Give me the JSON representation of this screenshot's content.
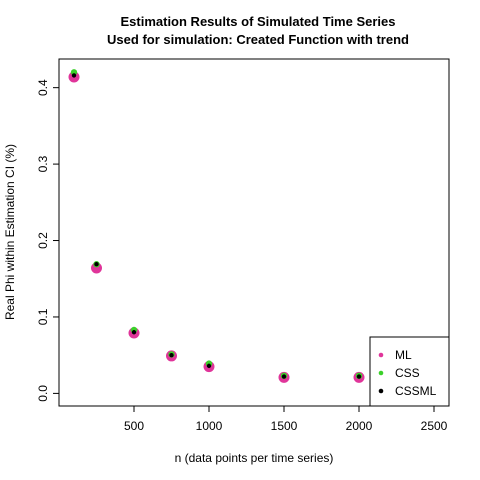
{
  "chart_data": {
    "type": "scatter",
    "title": "Estimation Results of Simulated Time Series",
    "subtitle": "Used for simulation: Created Function with trend",
    "xlabel": "n (data points per time series)",
    "ylabel": "Real Phi within Estimation CI (%)",
    "xlim": [
      100,
      2500
    ],
    "ylim": [
      0,
      0.43
    ],
    "xticks": [
      500,
      1000,
      1500,
      2000,
      2500
    ],
    "xtick_labels": [
      "500",
      "1000",
      "1500",
      "2000",
      "2500"
    ],
    "yticks": [
      0.0,
      0.1,
      0.2,
      0.3,
      0.4
    ],
    "ytick_labels": [
      "0.0",
      "0.1",
      "0.2",
      "0.3",
      "0.4"
    ],
    "grid": false,
    "legend_position": "bottom-right",
    "series": [
      {
        "name": "ML",
        "color": "#e0359a",
        "marker_size": 5.5,
        "x": [
          100,
          250,
          500,
          750,
          1000,
          1500,
          2000
        ],
        "y": [
          0.414,
          0.164,
          0.079,
          0.049,
          0.035,
          0.021,
          0.021
        ]
      },
      {
        "name": "CSS",
        "color": "#3bd02a",
        "marker_size": 3.2,
        "x": [
          100,
          250,
          500,
          750,
          1000,
          1500,
          2000
        ],
        "y": [
          0.42,
          0.169,
          0.083,
          0.051,
          0.039,
          0.023,
          0.023
        ]
      },
      {
        "name": "CSSML",
        "color": "#000000",
        "marker_size": 2.2,
        "x": [
          100,
          250,
          500,
          750,
          1000,
          1500,
          2000
        ],
        "y": [
          0.416,
          0.169,
          0.08,
          0.05,
          0.036,
          0.022,
          0.022
        ]
      }
    ]
  }
}
